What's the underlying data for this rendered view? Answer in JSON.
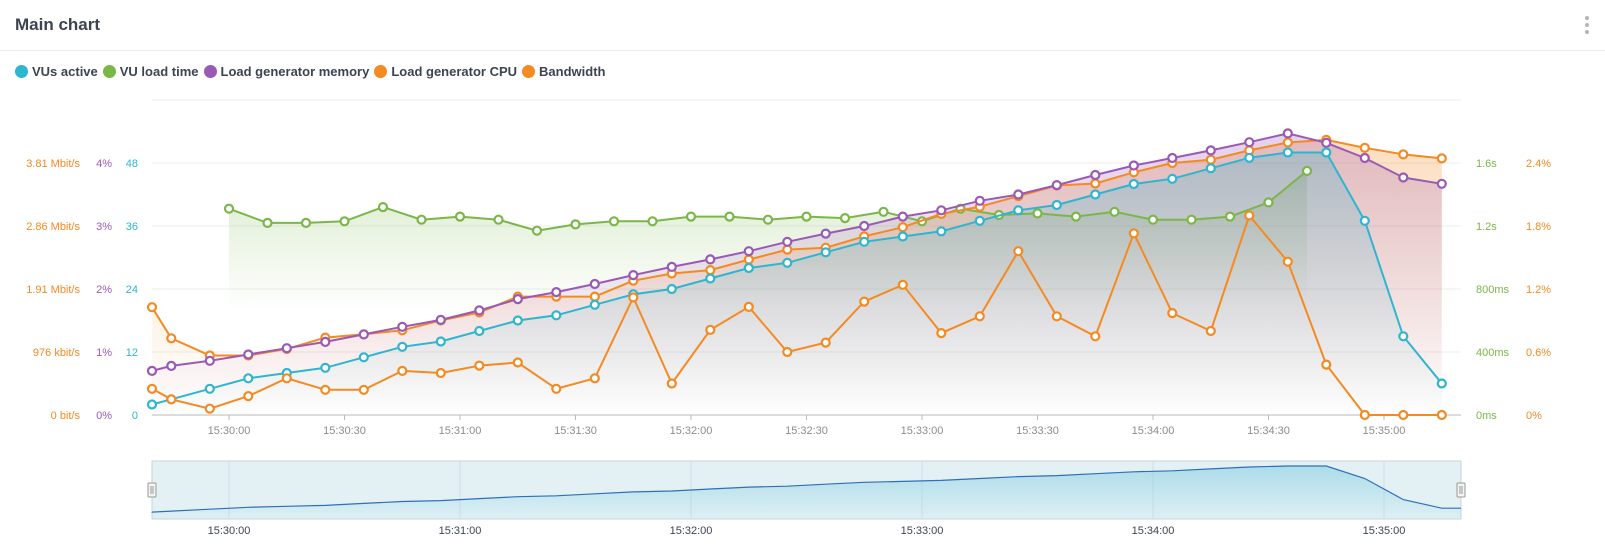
{
  "header": {
    "title": "Main chart"
  },
  "colors": {
    "vus": "#2eb5cf",
    "vu_load": "#7ab648",
    "memory": "#9b59b6",
    "cpu": "#f48a22",
    "bandwidth": "#f48a22",
    "grid": "#ececec",
    "axis_x": "#8c8c8c",
    "nav_bg": "#e3f1f5",
    "nav_line": "#2f6fba"
  },
  "icons": {
    "menu": "vertical-dots-icon"
  },
  "legend": [
    {
      "label": "VUs active",
      "color": "#2eb5cf"
    },
    {
      "label": "VU load time",
      "color": "#7ab648"
    },
    {
      "label": "Load generator memory",
      "color": "#9b59b6"
    },
    {
      "label": "Load generator CPU",
      "color": "#f48a22"
    },
    {
      "label": "Bandwidth",
      "color": "#f48a22"
    }
  ],
  "chart_data": {
    "type": "line",
    "x_unit": "time of day (hh:mm:ss)",
    "x_range": [
      "15:29:40",
      "15:35:20"
    ],
    "x_ticks": [
      "15:30:00",
      "15:30:30",
      "15:31:00",
      "15:31:30",
      "15:32:00",
      "15:32:30",
      "15:33:00",
      "15:33:30",
      "15:34:00",
      "15:34:30",
      "15:35:00"
    ],
    "axes": {
      "bandwidth": {
        "ticks": [
          "0 bit/s",
          "976 kbit/s",
          "1.91 Mbit/s",
          "2.86 Mbit/s",
          "3.81 Mbit/s"
        ],
        "range": [
          0,
          3.81
        ]
      },
      "memory": {
        "ticks": [
          "0%",
          "1%",
          "2%",
          "3%",
          "4%"
        ],
        "range": [
          0,
          4
        ]
      },
      "vus": {
        "ticks": [
          "0",
          "12",
          "24",
          "36",
          "48"
        ],
        "range": [
          0,
          48
        ]
      },
      "load_time": {
        "ticks": [
          "0ms",
          "400ms",
          "800ms",
          "1.2s",
          "1.6s"
        ],
        "range": [
          0,
          1.6
        ]
      },
      "cpu": {
        "ticks": [
          "0%",
          "0.6%",
          "1.2%",
          "1.8%",
          "2.4%"
        ],
        "range": [
          0,
          2.4
        ]
      }
    },
    "series": [
      {
        "name": "VUs active",
        "axis": "vus",
        "x": [
          "15:29:40",
          "15:29:45",
          "15:29:55",
          "15:30:05",
          "15:30:15",
          "15:30:25",
          "15:30:35",
          "15:30:45",
          "15:30:55",
          "15:31:05",
          "15:31:15",
          "15:31:25",
          "15:31:35",
          "15:31:45",
          "15:31:55",
          "15:32:05",
          "15:32:15",
          "15:32:25",
          "15:32:35",
          "15:32:45",
          "15:32:55",
          "15:33:05",
          "15:33:15",
          "15:33:25",
          "15:33:35",
          "15:33:45",
          "15:33:55",
          "15:34:05",
          "15:34:15",
          "15:34:25",
          "15:34:35",
          "15:34:45",
          "15:34:55",
          "15:35:05",
          "15:35:15"
        ],
        "values": [
          2,
          3,
          5,
          7,
          8,
          9,
          11,
          13,
          14,
          16,
          18,
          19,
          21,
          23,
          24,
          26,
          28,
          29,
          31,
          33,
          34,
          35,
          37,
          39,
          40,
          42,
          44,
          45,
          47,
          49,
          50,
          50,
          37,
          15,
          6
        ]
      },
      {
        "name": "VU load time",
        "axis": "load_time",
        "x": [
          "15:30:00",
          "15:30:10",
          "15:30:20",
          "15:30:30",
          "15:30:40",
          "15:30:50",
          "15:31:00",
          "15:31:10",
          "15:31:20",
          "15:31:30",
          "15:31:40",
          "15:31:50",
          "15:32:00",
          "15:32:10",
          "15:32:20",
          "15:32:30",
          "15:32:40",
          "15:32:50",
          "15:33:00",
          "15:33:10",
          "15:33:20",
          "15:33:30",
          "15:33:40",
          "15:33:50",
          "15:34:00",
          "15:34:10",
          "15:34:20",
          "15:34:30",
          "15:34:40"
        ],
        "values": [
          1.31,
          1.22,
          1.22,
          1.23,
          1.32,
          1.24,
          1.26,
          1.24,
          1.17,
          1.21,
          1.23,
          1.23,
          1.26,
          1.26,
          1.24,
          1.26,
          1.25,
          1.29,
          1.23,
          1.31,
          1.27,
          1.28,
          1.26,
          1.29,
          1.24,
          1.24,
          1.26,
          1.35,
          1.55
        ]
      },
      {
        "name": "Load generator memory",
        "axis": "memory",
        "x": [
          "15:29:40",
          "15:29:45",
          "15:29:55",
          "15:30:05",
          "15:30:15",
          "15:30:25",
          "15:30:35",
          "15:30:45",
          "15:30:55",
          "15:31:05",
          "15:31:15",
          "15:31:25",
          "15:31:35",
          "15:31:45",
          "15:31:55",
          "15:32:05",
          "15:32:15",
          "15:32:25",
          "15:32:35",
          "15:32:45",
          "15:32:55",
          "15:33:05",
          "15:33:15",
          "15:33:25",
          "15:33:35",
          "15:33:45",
          "15:33:55",
          "15:34:05",
          "15:34:15",
          "15:34:25",
          "15:34:35",
          "15:34:45",
          "15:34:55",
          "15:35:05",
          "15:35:15"
        ],
        "values": [
          0.7,
          0.78,
          0.86,
          0.96,
          1.06,
          1.16,
          1.28,
          1.4,
          1.51,
          1.66,
          1.84,
          1.95,
          2.08,
          2.22,
          2.35,
          2.47,
          2.6,
          2.75,
          2.88,
          3.0,
          3.15,
          3.25,
          3.4,
          3.5,
          3.65,
          3.81,
          3.96,
          4.08,
          4.2,
          4.33,
          4.47,
          4.32,
          4.08,
          3.77,
          3.67
        ]
      },
      {
        "name": "Load generator CPU",
        "axis": "cpu",
        "x": [
          "15:29:40",
          "15:29:45",
          "15:29:55",
          "15:30:05",
          "15:30:15",
          "15:30:25",
          "15:30:35",
          "15:30:45",
          "15:30:55",
          "15:31:05",
          "15:31:15",
          "15:31:25",
          "15:31:35",
          "15:31:45",
          "15:31:55",
          "15:32:05",
          "15:32:15",
          "15:32:25",
          "15:32:35",
          "15:32:45",
          "15:32:55",
          "15:33:05",
          "15:33:15",
          "15:33:25",
          "15:33:35",
          "15:33:45",
          "15:33:55",
          "15:34:05",
          "15:34:15",
          "15:34:25",
          "15:34:35",
          "15:34:45",
          "15:34:55",
          "15:35:05",
          "15:35:15"
        ],
        "values": [
          0.25,
          0.15,
          0.06,
          0.18,
          0.35,
          0.24,
          0.24,
          0.42,
          0.4,
          0.47,
          0.5,
          0.25,
          0.35,
          1.12,
          0.3,
          0.81,
          1.03,
          0.6,
          0.69,
          1.08,
          1.24,
          0.78,
          0.94,
          1.56,
          0.94,
          0.75,
          1.73,
          0.97,
          0.8,
          1.9,
          1.46,
          0.48,
          0.0,
          0.0,
          0.0
        ]
      },
      {
        "name": "Bandwidth",
        "axis": "bandwidth",
        "x": [
          "15:29:40",
          "15:29:45",
          "15:29:55",
          "15:30:05",
          "15:30:15",
          "15:30:25",
          "15:30:35",
          "15:30:45",
          "15:30:55",
          "15:31:05",
          "15:31:15",
          "15:31:25",
          "15:31:35",
          "15:31:45",
          "15:31:55",
          "15:32:05",
          "15:32:15",
          "15:32:25",
          "15:32:35",
          "15:32:45",
          "15:32:55",
          "15:33:05",
          "15:33:15",
          "15:33:25",
          "15:33:35",
          "15:33:45",
          "15:33:55",
          "15:34:05",
          "15:34:15",
          "15:34:25",
          "15:34:35",
          "15:34:45",
          "15:34:55",
          "15:35:05",
          "15:35:15"
        ],
        "values": [
          1.63,
          1.16,
          0.9,
          0.9,
          1.0,
          1.17,
          1.22,
          1.28,
          1.43,
          1.55,
          1.79,
          1.79,
          1.79,
          2.03,
          2.14,
          2.19,
          2.35,
          2.5,
          2.53,
          2.7,
          2.84,
          3.04,
          3.15,
          3.31,
          3.47,
          3.5,
          3.67,
          3.81,
          3.86,
          4.0,
          4.12,
          4.16,
          4.04,
          3.94,
          3.88
        ]
      }
    ],
    "navigator": {
      "x_ticks": [
        "15:30:00",
        "15:31:00",
        "15:32:00",
        "15:33:00",
        "15:34:00",
        "15:35:00"
      ]
    }
  }
}
